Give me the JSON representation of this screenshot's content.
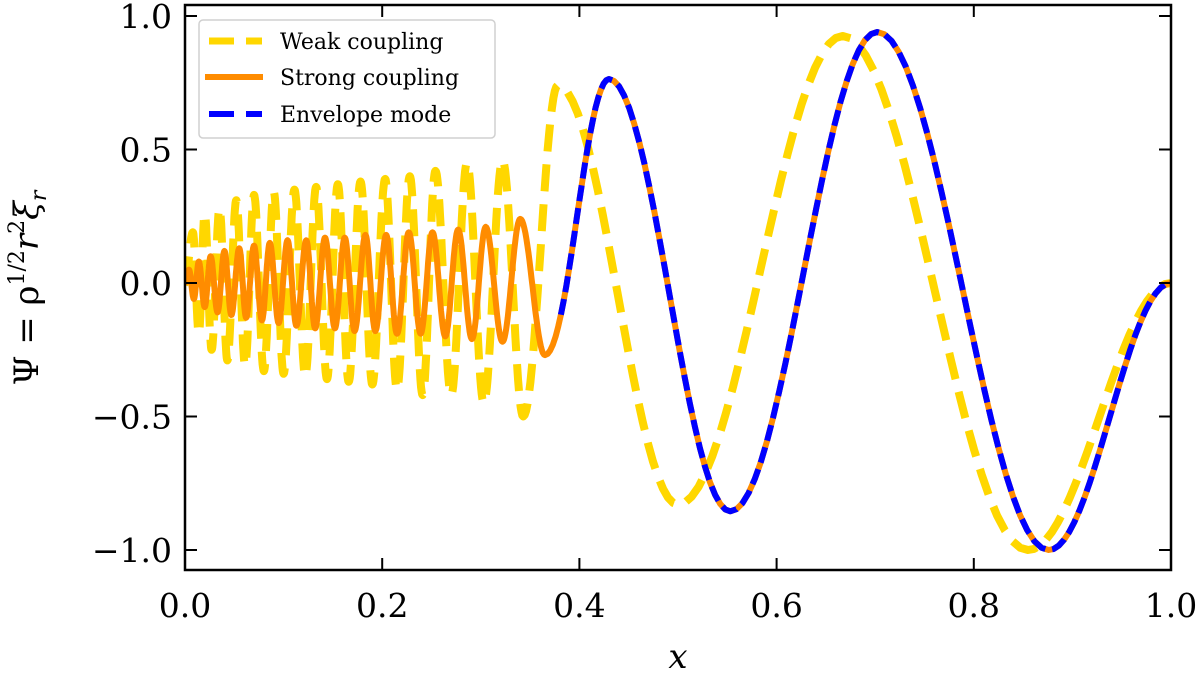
{
  "chart_data": {
    "type": "line",
    "xlabel": "x",
    "ylabel_parts": [
      {
        "text": "Ψ = ρ",
        "kind": "base"
      },
      {
        "text": "1/2",
        "kind": "sup"
      },
      {
        "text": "r",
        "kind": "base"
      },
      {
        "text": "2",
        "kind": "sup"
      },
      {
        "text": "ξ",
        "kind": "base"
      },
      {
        "text": "r",
        "kind": "sub"
      }
    ],
    "xlim": [
      0.0,
      1.0
    ],
    "ylim": [
      -1.1,
      1.04
    ],
    "xticks": [
      "0.0",
      "0.2",
      "0.4",
      "0.6",
      "0.8",
      "1.0"
    ],
    "xtick_values": [
      0.0,
      0.2,
      0.4,
      0.6,
      0.8,
      1.0
    ],
    "yticks": [
      "−1.0",
      "−0.5",
      "0.0",
      "0.5",
      "1.0"
    ],
    "ytick_values": [
      -1.0,
      -0.5,
      0.0,
      0.5,
      1.0
    ],
    "tick_direction": "in",
    "grid": false,
    "legend_position": "top-left",
    "series": [
      {
        "name": "Weak coupling",
        "color": "#FFD700",
        "style": "dashed",
        "extrema": [
          [
            0,
            0
          ],
          [
            0.008,
            0.19
          ],
          [
            0.014,
            -0.19
          ],
          [
            0.02,
            0.26
          ],
          [
            0.027,
            -0.25
          ],
          [
            0.035,
            0.28
          ],
          [
            0.043,
            -0.29
          ],
          [
            0.052,
            0.31
          ],
          [
            0.061,
            -0.31
          ],
          [
            0.07,
            0.33
          ],
          [
            0.08,
            -0.33
          ],
          [
            0.09,
            0.34
          ],
          [
            0.1,
            -0.34
          ],
          [
            0.111,
            0.35
          ],
          [
            0.122,
            -0.35
          ],
          [
            0.133,
            0.36
          ],
          [
            0.144,
            -0.36
          ],
          [
            0.155,
            0.37
          ],
          [
            0.166,
            -0.37
          ],
          [
            0.178,
            0.38
          ],
          [
            0.19,
            -0.38
          ],
          [
            0.203,
            0.39
          ],
          [
            0.215,
            -0.4
          ],
          [
            0.228,
            0.4
          ],
          [
            0.241,
            -0.42
          ],
          [
            0.254,
            0.42
          ],
          [
            0.27,
            -0.42
          ],
          [
            0.286,
            0.45
          ],
          [
            0.303,
            -0.45
          ],
          [
            0.322,
            0.46
          ],
          [
            0.343,
            -0.5
          ],
          [
            0.378,
            0.74
          ],
          [
            0.5,
            -0.83
          ],
          [
            0.667,
            0.925
          ],
          [
            0.855,
            -1.0
          ],
          [
            1.0,
            0.0
          ]
        ]
      },
      {
        "name": "Strong coupling",
        "color": "#FF8C00",
        "style": "solid",
        "extrema": [
          [
            0,
            0
          ],
          [
            0.004,
            0.05
          ],
          [
            0.009,
            -0.06
          ],
          [
            0.014,
            0.08
          ],
          [
            0.02,
            -0.09
          ],
          [
            0.026,
            0.1
          ],
          [
            0.033,
            -0.11
          ],
          [
            0.04,
            0.12
          ],
          [
            0.047,
            -0.12
          ],
          [
            0.055,
            0.13
          ],
          [
            0.062,
            -0.13
          ],
          [
            0.07,
            0.14
          ],
          [
            0.078,
            -0.14
          ],
          [
            0.086,
            0.15
          ],
          [
            0.095,
            -0.15
          ],
          [
            0.104,
            0.16
          ],
          [
            0.113,
            -0.16
          ],
          [
            0.123,
            0.16
          ],
          [
            0.132,
            -0.17
          ],
          [
            0.142,
            0.17
          ],
          [
            0.152,
            -0.17
          ],
          [
            0.162,
            0.17
          ],
          [
            0.172,
            -0.18
          ],
          [
            0.183,
            0.18
          ],
          [
            0.193,
            -0.18
          ],
          [
            0.204,
            0.18
          ],
          [
            0.215,
            -0.19
          ],
          [
            0.227,
            0.19
          ],
          [
            0.239,
            -0.19
          ],
          [
            0.251,
            0.19
          ],
          [
            0.264,
            -0.2
          ],
          [
            0.277,
            0.2
          ],
          [
            0.291,
            -0.21
          ],
          [
            0.305,
            0.21
          ],
          [
            0.322,
            -0.22
          ],
          [
            0.34,
            0.24
          ],
          [
            0.365,
            -0.27
          ],
          [
            0.43,
            0.764
          ],
          [
            0.553,
            -0.855
          ],
          [
            0.702,
            0.94
          ],
          [
            0.876,
            -1.0
          ],
          [
            1.0,
            0.0
          ]
        ]
      },
      {
        "name": "Envelope mode",
        "color": "#0000FF",
        "style": "dashed",
        "x_start": 0.379,
        "extrema": [
          [
            0.365,
            -0.27
          ],
          [
            0.43,
            0.764
          ],
          [
            0.553,
            -0.855
          ],
          [
            0.702,
            0.94
          ],
          [
            0.876,
            -1.0
          ],
          [
            1.0,
            0.0
          ]
        ]
      }
    ]
  }
}
